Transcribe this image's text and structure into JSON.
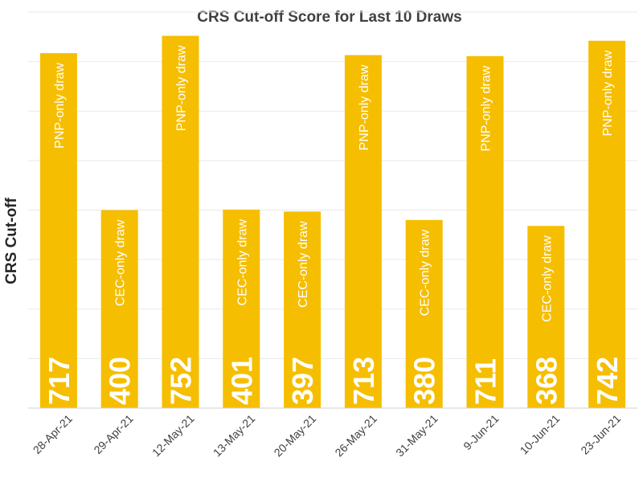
{
  "chart_data": {
    "type": "bar",
    "title": "CRS Cut-off Score for Last 10 Draws",
    "xlabel": "",
    "ylabel": "CRS Cut-off",
    "ylim": [
      0,
      800
    ],
    "grid": true,
    "legend": "none",
    "bar_color": "#F6BE00",
    "categories": [
      "28-Apr-21",
      "29-Apr-21",
      "12-May-21",
      "13-May-21",
      "20-May-21",
      "26-May-21",
      "31-May-21",
      "9-Jun-21",
      "10-Jun-21",
      "23-Jun-21"
    ],
    "values": [
      717,
      400,
      752,
      401,
      397,
      713,
      380,
      711,
      368,
      742
    ],
    "annotations": [
      "PNP-only draw",
      "CEC-only draw",
      "PNP-only draw",
      "CEC-only draw",
      "CEC-only draw",
      "PNP-only draw",
      "CEC-only draw",
      "PNP-only draw",
      "CEC-only draw",
      "PNP-only draw"
    ]
  }
}
